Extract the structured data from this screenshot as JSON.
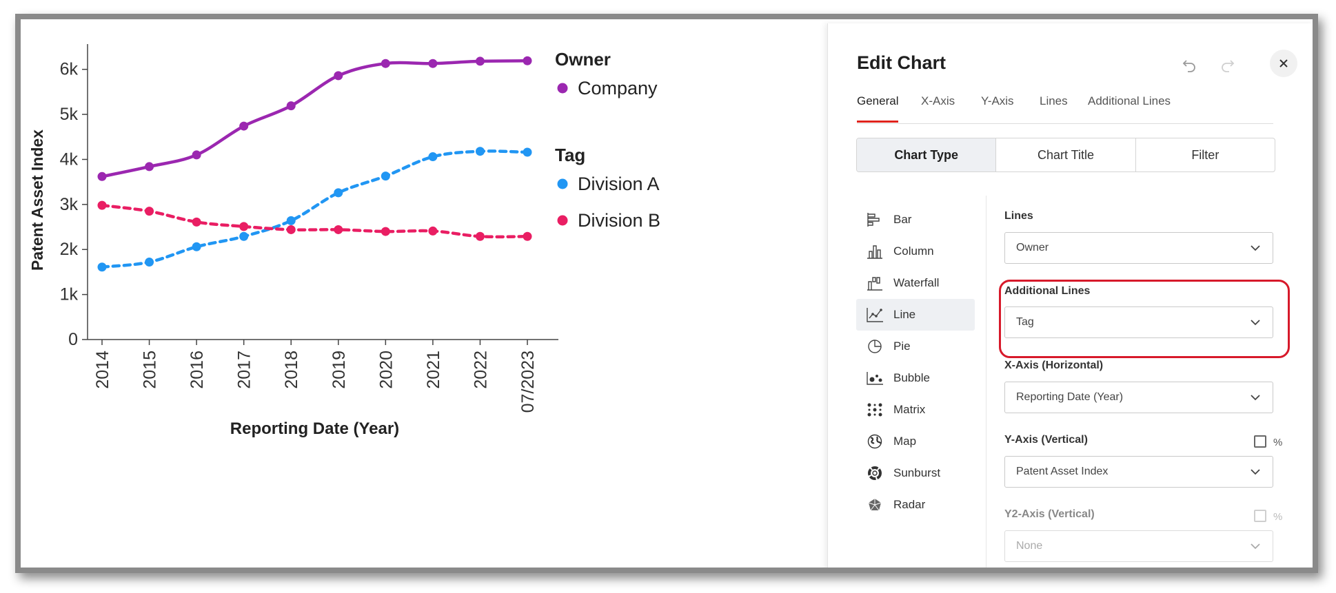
{
  "chart": {
    "y_axis_title": "Patent Asset Index",
    "x_axis_title": "Reporting Date (Year)",
    "legend": {
      "owner_heading": "Owner",
      "owner_items": [
        {
          "label": "Company",
          "color": "#9b27b0"
        }
      ],
      "tag_heading": "Tag",
      "tag_items": [
        {
          "label": "Division A",
          "color": "#2196f3"
        },
        {
          "label": "Division B",
          "color": "#e91e63"
        }
      ]
    }
  },
  "chart_data": {
    "type": "line",
    "categories": [
      "2014",
      "2015",
      "2016",
      "2017",
      "2018",
      "2019",
      "2020",
      "2021",
      "2022",
      "07/2023"
    ],
    "xlabel": "Reporting Date (Year)",
    "ylabel": "Patent Asset Index",
    "ylim": [
      0,
      6500
    ],
    "yticks": [
      0,
      1000,
      2000,
      3000,
      4000,
      5000,
      6000
    ],
    "ytick_labels": [
      "0",
      "1k",
      "2k",
      "3k",
      "4k",
      "5k",
      "6k"
    ],
    "grid": false,
    "legend_position": "right",
    "series": [
      {
        "name": "Company",
        "group": "Owner",
        "style": "solid",
        "color": "#9b27b0",
        "values": [
          3620,
          3840,
          4100,
          4740,
          5190,
          5860,
          6130,
          6130,
          6180,
          6190
        ]
      },
      {
        "name": "Division A",
        "group": "Tag",
        "style": "dashed",
        "color": "#2196f3",
        "values": [
          1610,
          1720,
          2060,
          2290,
          2640,
          3260,
          3630,
          4060,
          4180,
          4160
        ]
      },
      {
        "name": "Division B",
        "group": "Tag",
        "style": "dashed",
        "color": "#e91e63",
        "values": [
          2980,
          2850,
          2610,
          2510,
          2440,
          2440,
          2400,
          2410,
          2290,
          2290
        ]
      }
    ]
  },
  "panel": {
    "title": "Edit Chart",
    "tabs": [
      "General",
      "X-Axis",
      "Y-Axis",
      "Lines",
      "Additional Lines"
    ],
    "active_tab": "General",
    "segments": [
      "Chart Type",
      "Chart Title",
      "Filter"
    ],
    "active_segment": "Chart Type",
    "chart_types": [
      {
        "label": "Bar",
        "icon": "bar-chart-icon"
      },
      {
        "label": "Column",
        "icon": "column-chart-icon"
      },
      {
        "label": "Waterfall",
        "icon": "waterfall-chart-icon"
      },
      {
        "label": "Line",
        "icon": "line-chart-icon"
      },
      {
        "label": "Pie",
        "icon": "pie-chart-icon"
      },
      {
        "label": "Bubble",
        "icon": "bubble-chart-icon"
      },
      {
        "label": "Matrix",
        "icon": "matrix-chart-icon"
      },
      {
        "label": "Map",
        "icon": "globe-icon"
      },
      {
        "label": "Sunburst",
        "icon": "sunburst-chart-icon"
      },
      {
        "label": "Radar",
        "icon": "radar-chart-icon"
      }
    ],
    "active_chart_type": "Line",
    "fields": {
      "lines_label": "Lines",
      "lines_value": "Owner",
      "additional_lines_label": "Additional Lines",
      "additional_lines_value": "Tag",
      "x_axis_label": "X-Axis (Horizontal)",
      "x_axis_value": "Reporting Date (Year)",
      "y_axis_label": "Y-Axis (Vertical)",
      "y_axis_value": "Patent Asset Index",
      "y_axis_percent": "%",
      "y2_axis_label": "Y2-Axis (Vertical)",
      "y2_axis_value": "None",
      "y2_axis_percent": "%"
    },
    "highlight_color": "#d7192a",
    "accent_color": "#e0231c"
  }
}
